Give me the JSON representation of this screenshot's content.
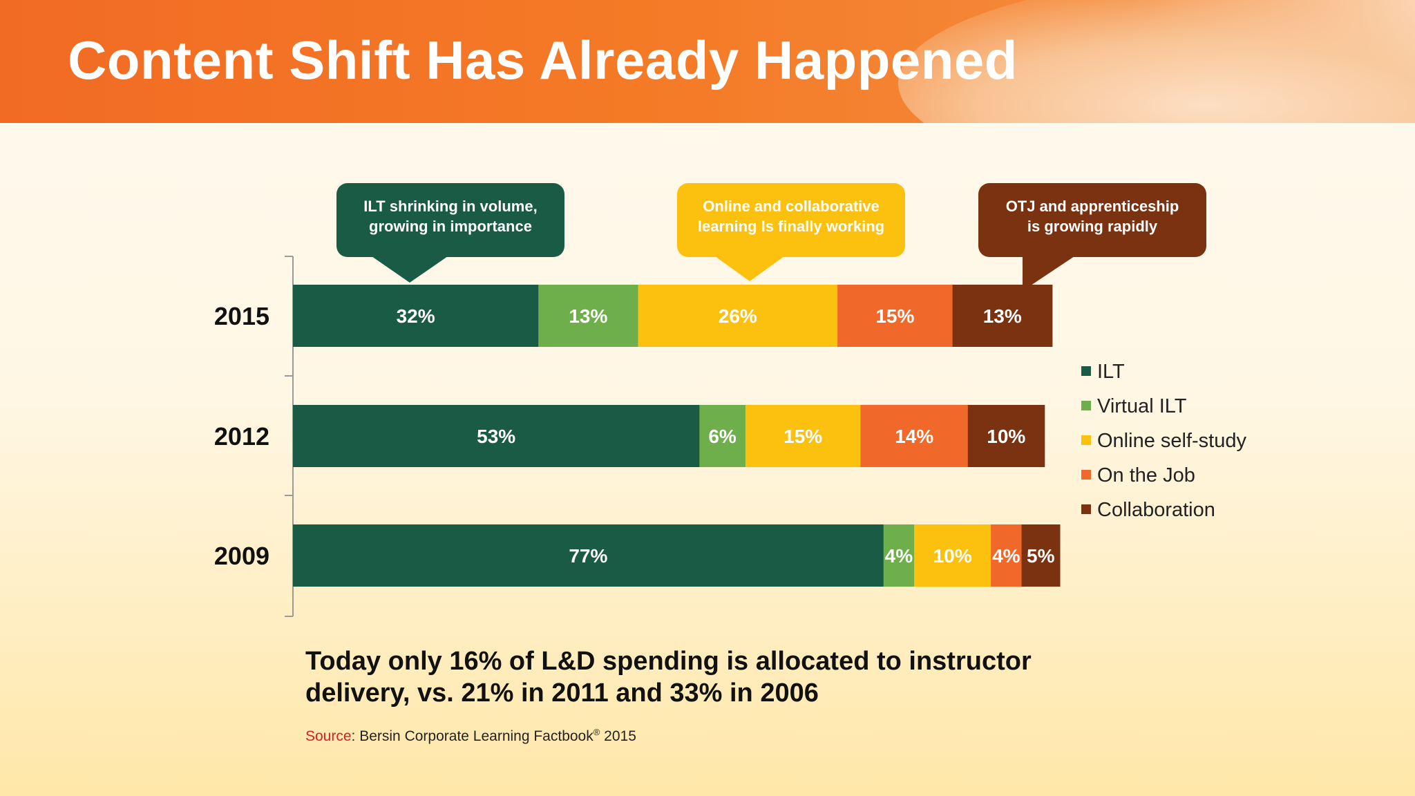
{
  "header": {
    "title": "Content Shift Has Already Happened"
  },
  "callouts": [
    {
      "lines": [
        "ILT shrinking in volume,",
        "growing in importance"
      ],
      "color": "#1a5b45"
    },
    {
      "lines": [
        "Online and collaborative",
        "learning Is finally working"
      ],
      "color": "#fcc10f"
    },
    {
      "lines": [
        "OTJ and apprenticeship",
        "is growing rapidly"
      ],
      "color": "#7b3210"
    }
  ],
  "chart_data": {
    "type": "bar",
    "orientation": "horizontal",
    "stacked": true,
    "categories": [
      "2015",
      "2012",
      "2009"
    ],
    "series": [
      {
        "name": "ILT",
        "color": "#1a5b45",
        "values": [
          32,
          53,
          77
        ],
        "labels": [
          "32%",
          "53%",
          "77%"
        ]
      },
      {
        "name": "Virtual ILT",
        "color": "#6eae4b",
        "values": [
          13,
          6,
          4
        ],
        "labels": [
          "13%",
          "6%",
          "4%"
        ]
      },
      {
        "name": "Online self-study",
        "color": "#fcc10f",
        "values": [
          26,
          15,
          10
        ],
        "labels": [
          "26%",
          "15%",
          "10%"
        ]
      },
      {
        "name": "On the Job",
        "color": "#f0692a",
        "values": [
          15,
          14,
          4
        ],
        "labels": [
          "15%",
          "14%",
          "4%"
        ]
      },
      {
        "name": "Collaboration",
        "color": "#7b3210",
        "values": [
          13,
          10,
          5
        ],
        "labels": [
          "13%",
          "10%",
          "5%"
        ]
      }
    ],
    "legend_position": "right",
    "grid": false
  },
  "footnote": {
    "line1": "Today only 16% of L&D spending is allocated to instructor",
    "line2": "delivery, vs. 21% in 2011 and 33% in 2006"
  },
  "source": {
    "label": "Source",
    "text": ": Bersin Corporate Learning Factbook",
    "sup": "®",
    "year": " 2015"
  }
}
